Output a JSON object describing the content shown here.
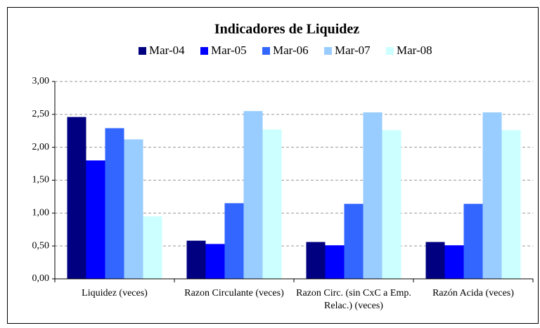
{
  "chart_data": {
    "type": "bar",
    "title": "Indicadores de Liquidez",
    "categories": [
      "Liquidez (veces)",
      "Razon Circulante (veces)",
      "Razon Circ. (sin CxC a Emp. Relac.) (veces)",
      "Razón Acida (veces)"
    ],
    "series": [
      {
        "name": "Mar-04",
        "color": "#000080",
        "values": [
          2.46,
          0.58,
          0.56,
          0.56
        ]
      },
      {
        "name": "Mar-05",
        "color": "#0000ff",
        "values": [
          1.8,
          0.53,
          0.51,
          0.51
        ]
      },
      {
        "name": "Mar-06",
        "color": "#3366ff",
        "values": [
          2.29,
          1.15,
          1.14,
          1.14
        ]
      },
      {
        "name": "Mar-07",
        "color": "#99ccff",
        "values": [
          2.12,
          2.55,
          2.53,
          2.53
        ]
      },
      {
        "name": "Mar-08",
        "color": "#ccffff",
        "values": [
          0.95,
          2.27,
          2.26,
          2.26
        ]
      }
    ],
    "ylim": [
      0,
      3
    ],
    "yticks": [
      {
        "value": 0,
        "label": "0,00"
      },
      {
        "value": 0.5,
        "label": "0,50"
      },
      {
        "value": 1,
        "label": "1,00"
      },
      {
        "value": 1.5,
        "label": "1,50"
      },
      {
        "value": 2,
        "label": "2,00"
      },
      {
        "value": 2.5,
        "label": "2,50"
      },
      {
        "value": 3,
        "label": "3,00"
      }
    ],
    "grid": true,
    "legend": "top"
  }
}
